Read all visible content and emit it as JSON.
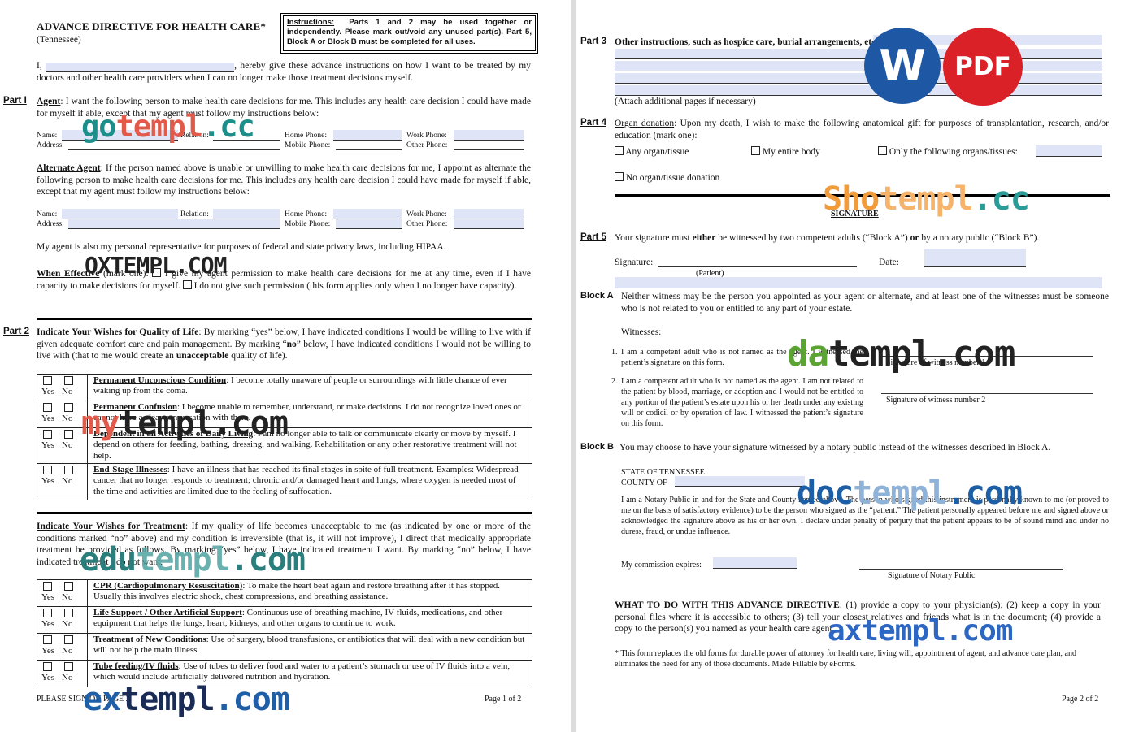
{
  "p1": {
    "title": "ADVANCE DIRECTIVE FOR HEALTH CARE*",
    "subtitle": "(Tennessee)",
    "instructions": {
      "label": "Instructions:",
      "text": "Parts 1 and 2 may be used together or independently.  Please mark out/void any unused part(s).  Part 5, Block A or Block B must be completed for all uses."
    },
    "intro_a": "I,",
    "intro_b": ", hereby give these advance instructions on how I want to be treated by my doctors and other health care providers when I can no longer make those treatment decisions myself.",
    "part1": "Part I",
    "agent_label": "Agent",
    "agent_text": ":  I want the following person to make health care decisions for me.  This includes any health care decision I could have made for myself if able, except that my agent must follow my instructions below:",
    "f_name": "Name:",
    "f_relation": "Relation:",
    "f_home": "Home Phone:",
    "f_work": "Work Phone:",
    "f_address": "Address:",
    "f_mobile": "Mobile Phone:",
    "f_other": "Other Phone:",
    "alt_label": "Alternate Agent",
    "alt_text": ":  If the person named above is unable or unwilling to make health care decisions for me, I appoint as alternate the following person to make health care decisions for me.  This includes any health care decision I could have made for myself if able, except that my agent must follow my instructions below:",
    "hipaa": "My agent is also my personal representative for purposes of federal and state privacy laws, including HIPAA.",
    "when_label": "When Effective",
    "when_a": " (mark one):  ",
    "when_b": " I give my agent permission to make health care decisions for me at any time, even if I have capacity to make decisions for myself.  ",
    "when_c": " I do not give such permission (this form applies only when I no longer have capacity).",
    "part2": "Part 2",
    "qol_label": "Indicate Your Wishes for Quality of Life",
    "qol_a": ":  By marking “yes” below, I have indicated conditions I would be willing to live with if given adequate comfort care and pain management.  By marking “",
    "qol_no": "no",
    "qol_b": "” below, I have indicated conditions I would not be willing to live with (that to me would create an ",
    "qol_unacc": "unacceptable",
    "qol_c": " quality of life).",
    "yes": "Yes",
    "no": "No",
    "qol_rows": [
      {
        "title": "Permanent Unconscious Condition",
        "text": ":  I become totally unaware of people or surroundings with little chance of ever waking up from the coma."
      },
      {
        "title": "Permanent Confusion",
        "text": ":  I become unable to remember, understand, or make decisions.  I do not recognize loved ones or cannot have a clear conversation with them."
      },
      {
        "title": "Dependent in all Activities of Daily Living",
        "text": ":  I am no longer able to talk or communicate clearly or move by myself.  I depend on others for feeding, bathing, dressing, and walking.  Rehabilitation or any other restorative treatment will not help."
      },
      {
        "title": "End-Stage Illnesses",
        "text": ":  I have an illness that has reached its final stages in spite of full treatment.  Examples:  Widespread cancer that no longer responds to treatment; chronic and/or damaged heart and lungs, where oxygen is needed most of the time and activities are limited due to the feeling of suffocation."
      }
    ],
    "tx_label": "Indicate Your Wishes for Treatment",
    "tx_text": ":  If my quality of life becomes unacceptable to me (as indicated by one or more of the conditions marked “no” above) and my condition is irreversible (that is, it will not improve), I direct that medically appropriate treatment be provided as follows.  By marking “yes” below, I have indicated treatment I want.  By marking “no” below, I have indicated treatment I do not want.",
    "tx_rows": [
      {
        "title": "CPR (Cardiopulmonary Resuscitation)",
        "text": ":  To make the heart beat again and restore breathing after it has stopped.  Usually this involves electric shock, chest compressions, and breathing assistance."
      },
      {
        "title": "Life Support / Other Artificial Support",
        "text": ":  Continuous use of breathing machine, IV fluids, medications, and other equipment that helps the lungs, heart, kidneys, and other organs to continue to work."
      },
      {
        "title": "Treatment of New Conditions",
        "text": ":  Use of surgery, blood transfusions, or antibiotics that will deal with a new condition but will not help the main illness."
      },
      {
        "title": "Tube feeding/IV fluids",
        "text": ":  Use of tubes to deliver food and water to a patient’s stomach or use of IV fluids into a vein, which would include artificially delivered nutrition and hydration."
      }
    ],
    "footer_left": "PLEASE SIGN ON PAGE 2",
    "footer_right": "Page 1 of 2"
  },
  "p2": {
    "part3": "Part 3",
    "p3_text": "Other instructions, such as hospice care, burial arrangements, etc.:",
    "p3_attach": "(Attach additional pages if necessary)",
    "part4": "Part 4",
    "organ_label": "Organ donation",
    "organ_text": ":  Upon my death, I wish to make the following anatomical gift  for purposes of transplantation, research, and/or education (mark one):",
    "opt_any": "Any organ/tissue",
    "opt_entire": "My entire body",
    "opt_only": "Only the following organs/tissues:",
    "opt_none": "No organ/tissue donation",
    "signature_heading": "SIGNATURE",
    "part5": "Part 5",
    "p5_a": "Your signature must ",
    "p5_either": "either",
    "p5_b": " be witnessed by two competent adults (“Block A”) ",
    "p5_or": "or",
    "p5_c": " by a notary public (“Block B”).",
    "sig_label": "Signature:",
    "patient": "(Patient)",
    "date_label": "Date:",
    "blockA": "Block A",
    "blockA_text": "Neither witness may be the person you appointed as your agent or alternate, and at least one of the witnesses must be someone who is not related to you or entitled to any part of your estate.",
    "witnesses": "Witnesses:",
    "w1_num": "1.",
    "w1": "I am a competent adult who is not named as the agent.  I witnessed the patient’s signature on this form.",
    "w1_sig": "Signature of witness number 1",
    "w2_num": "2.",
    "w2": "I am a competent adult who is not named as the agent.  I am not related to the patient by blood, marriage, or adoption and I would not be entitled to any portion of the patient’s estate upon his or her death under any existing will or codicil or by operation of law.  I witnessed the patient’s signature on this form.",
    "w2_sig": "Signature of witness number 2",
    "blockB": "Block B",
    "blockB_text": "You may choose to have your signature witnessed by a notary public instead of the witnesses described in Block A.",
    "state": "STATE OF TENNESSEE",
    "county": "COUNTY OF",
    "notary_text": "I am a Notary Public in and for the State and County named above.  The person who signed this instrument is personally known to me (or proved to me on the basis of satisfactory evidence) to be the person who signed as the “patient.”  The patient personally appeared before me and signed above or acknowledged the signature above as his or her own.  I declare under penalty of perjury that the patient appears to be of sound mind and under no duress, fraud, or undue influence.",
    "commission": "My commission expires:",
    "notary_sig": "Signature of Notary Public",
    "what_label": "WHAT TO DO WITH THIS ADVANCE DIRECTIVE",
    "what_text": ":  (1) provide a copy to your physician(s); (2) keep a copy in your personal files where it is accessible to others; (3) tell your closest relatives and friends what is in the document; (4) provide a copy to the person(s) you named as your health care agent.",
    "footnote": "* This form replaces the old forms for durable power of attorney for health care, living will, appointment of agent, and advance care plan, and eliminates the need for any of those documents. Made Fillable by eForms.",
    "footer_right": "Page 2 of 2"
  },
  "logos": {
    "word": "W",
    "pdf": "PDF",
    "word_color": "#1e57a4",
    "pdf_color": "#db2128"
  },
  "watermarks": {
    "gotempl": [
      "go",
      "templ",
      ".cc"
    ],
    "oxtempl": [
      "OXTEMPL.COM"
    ],
    "mytempl": [
      "my",
      "templ",
      ".com"
    ],
    "edutempl": [
      "edu",
      "templ",
      ".com"
    ],
    "extempl": [
      "ex",
      "templ",
      ".com"
    ],
    "shotempl": [
      "Sho",
      "templ",
      ".cc"
    ],
    "datempl": [
      "da",
      "templ",
      ".com"
    ],
    "doctempl": [
      "doc",
      "templ",
      ".com"
    ],
    "axtempl": [
      "ax",
      "templ",
      ".com"
    ]
  }
}
